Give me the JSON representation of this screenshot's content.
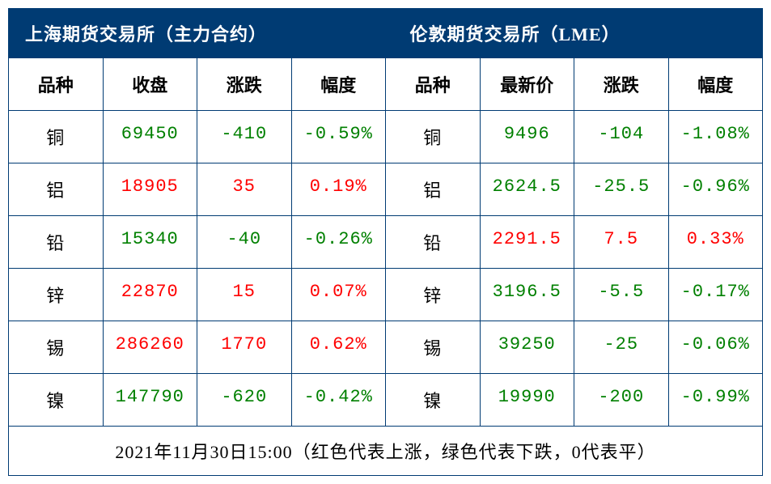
{
  "table": {
    "type": "table",
    "colors": {
      "header_bg": "#003b73",
      "header_text": "#ffffff",
      "border": "#003b73",
      "text": "#000000",
      "up": "#ff0000",
      "down": "#008000",
      "background": "#ffffff"
    },
    "typography": {
      "font_family": "SimSun",
      "header_fontsize": 22,
      "colheader_fontsize": 22,
      "cell_fontsize": 22,
      "footer_fontsize": 22,
      "header_weight": "bold",
      "colheader_weight": "bold"
    },
    "header_left": "上海期货交易所（主力合约）",
    "header_right": "伦敦期货交易所（LME）",
    "columns_left": [
      "品种",
      "收盘",
      "涨跌",
      "幅度"
    ],
    "columns_right": [
      "品种",
      "最新价",
      "涨跌",
      "幅度"
    ],
    "rows": [
      {
        "l_name": "铜",
        "l_close": "69450",
        "l_chg": "-410",
        "l_pct": "-0.59%",
        "l_dir": "down",
        "r_name": "铜",
        "r_price": "9496",
        "r_chg": "-104",
        "r_pct": "-1.08%",
        "r_dir": "down"
      },
      {
        "l_name": "铝",
        "l_close": "18905",
        "l_chg": "35",
        "l_pct": "0.19%",
        "l_dir": "up",
        "r_name": "铝",
        "r_price": "2624.5",
        "r_chg": "-25.5",
        "r_pct": "-0.96%",
        "r_dir": "down"
      },
      {
        "l_name": "铅",
        "l_close": "15340",
        "l_chg": "-40",
        "l_pct": "-0.26%",
        "l_dir": "down",
        "r_name": "铅",
        "r_price": "2291.5",
        "r_chg": "7.5",
        "r_pct": "0.33%",
        "r_dir": "up"
      },
      {
        "l_name": "锌",
        "l_close": "22870",
        "l_chg": "15",
        "l_pct": "0.07%",
        "l_dir": "up",
        "r_name": "锌",
        "r_price": "3196.5",
        "r_chg": "-5.5",
        "r_pct": "-0.17%",
        "r_dir": "down"
      },
      {
        "l_name": "锡",
        "l_close": "286260",
        "l_chg": "1770",
        "l_pct": "0.62%",
        "l_dir": "up",
        "r_name": "锡",
        "r_price": "39250",
        "r_chg": "-25",
        "r_pct": "-0.06%",
        "r_dir": "down"
      },
      {
        "l_name": "镍",
        "l_close": "147790",
        "l_chg": "-620",
        "l_pct": "-0.42%",
        "l_dir": "down",
        "r_name": "镍",
        "r_price": "19990",
        "r_chg": "-200",
        "r_pct": "-0.99%",
        "r_dir": "down"
      }
    ],
    "footer": "2021年11月30日15:00（红色代表上涨，绿色代表下跌，0代表平）"
  }
}
